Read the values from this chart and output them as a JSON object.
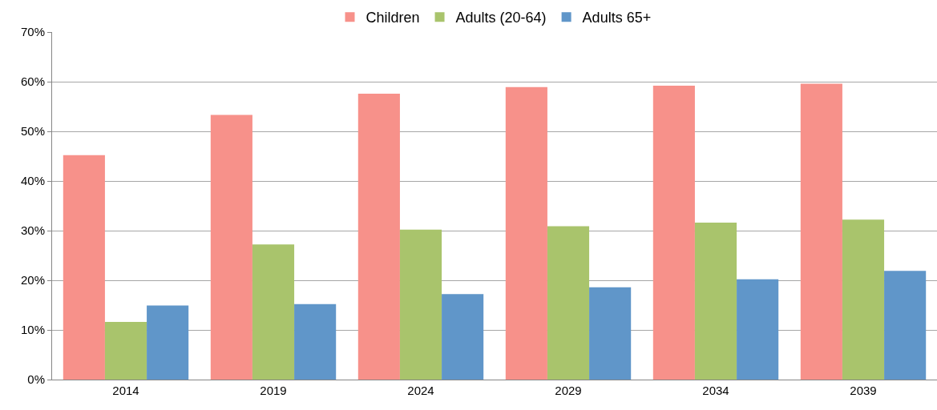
{
  "chart_data": {
    "type": "bar",
    "categories": [
      "2014",
      "2019",
      "2024",
      "2029",
      "2034",
      "2039"
    ],
    "series": [
      {
        "name": "Children",
        "color": "#f7918a",
        "values": [
          45.2,
          53.3,
          57.6,
          58.9,
          59.2,
          59.6
        ]
      },
      {
        "name": "Adults (20-64)",
        "color": "#a9c46c",
        "values": [
          11.6,
          27.2,
          30.2,
          30.9,
          31.6,
          32.2
        ]
      },
      {
        "name": "Adults 65+",
        "color": "#6096c9",
        "values": [
          14.9,
          15.2,
          17.2,
          18.6,
          20.2,
          21.9
        ]
      }
    ],
    "ylim": [
      0,
      70
    ],
    "yticks": [
      {
        "value": 0,
        "label": "0%"
      },
      {
        "value": 10,
        "label": "10%"
      },
      {
        "value": 20,
        "label": "20%"
      },
      {
        "value": 30,
        "label": "30%"
      },
      {
        "value": 40,
        "label": "40%"
      },
      {
        "value": 50,
        "label": "50%"
      },
      {
        "value": 60,
        "label": "60%"
      },
      {
        "value": 70,
        "label": "70%"
      }
    ],
    "grid": "y",
    "legend": "top"
  }
}
